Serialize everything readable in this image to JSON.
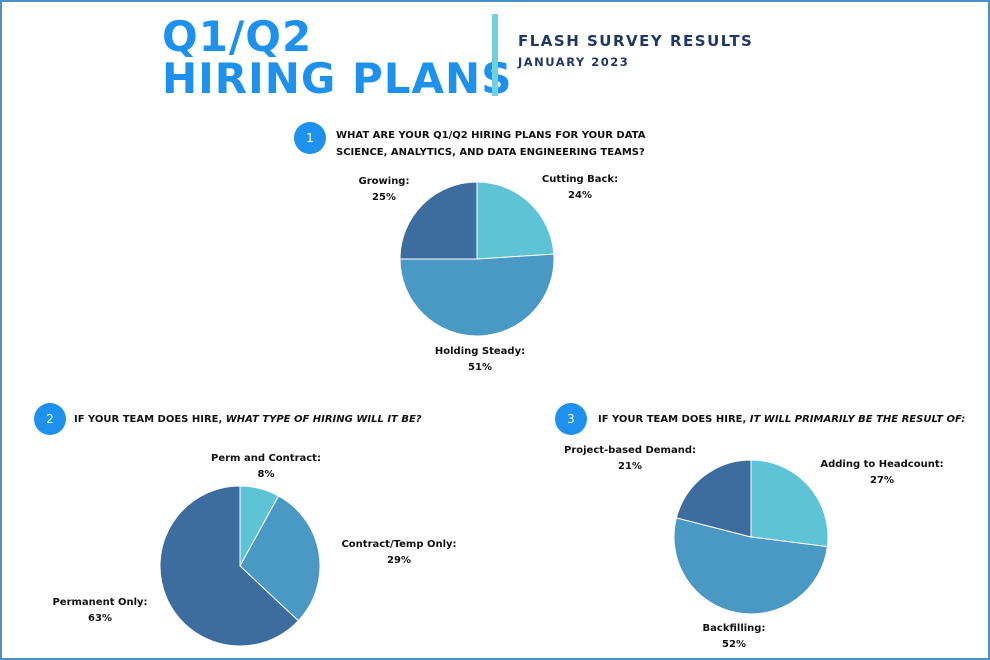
{
  "header": {
    "title_line1": "Q1/Q2",
    "title_line2": "HIRING PLANS",
    "subtitle": "FLASH SURVEY RESULTS",
    "date": "JANUARY 2023"
  },
  "colors": {
    "light": "#5fc3d8",
    "mid": "#4a98c4",
    "dark": "#3d6c9e",
    "accent": "#1e90ee",
    "divider": "#6fd3dc",
    "navy": "#1f3864"
  },
  "questions": [
    {
      "number": "1",
      "line1": "WHAT ARE YOUR Q1/Q2 HIRING PLANS FOR YOUR DATA",
      "line2": "SCIENCE, ANALYTICS, AND DATA ENGINEERING TEAMS?"
    },
    {
      "number": "2",
      "prefix": "IF YOUR TEAM DOES HIRE, ",
      "emphasis": "WHAT TYPE OF HIRING WILL IT BE?"
    },
    {
      "number": "3",
      "prefix": "IF YOUR TEAM DOES HIRE, ",
      "emphasis": "IT WILL PRIMARILY BE THE RESULT OF:"
    }
  ],
  "chart_data": [
    {
      "type": "pie",
      "slices": [
        {
          "label": "Cutting Back:",
          "value": 24,
          "pct": "24%",
          "color": "#5fc3d8"
        },
        {
          "label": "Holding Steady:",
          "value": 51,
          "pct": "51%",
          "color": "#4a98c4"
        },
        {
          "label": "Growing:",
          "value": 25,
          "pct": "25%",
          "color": "#3d6c9e"
        }
      ]
    },
    {
      "type": "pie",
      "slices": [
        {
          "label": "Perm and Contract:",
          "value": 8,
          "pct": "8%",
          "color": "#5fc3d8"
        },
        {
          "label": "Contract/Temp Only:",
          "value": 29,
          "pct": "29%",
          "color": "#4a98c4"
        },
        {
          "label": "Permanent Only:",
          "value": 63,
          "pct": "63%",
          "color": "#3d6c9e"
        }
      ]
    },
    {
      "type": "pie",
      "slices": [
        {
          "label": "Adding to Headcount:",
          "value": 27,
          "pct": "27%",
          "color": "#5fc3d8"
        },
        {
          "label": "Backfilling:",
          "value": 52,
          "pct": "52%",
          "color": "#4a98c4"
        },
        {
          "label": "Project-based Demand:",
          "value": 21,
          "pct": "21%",
          "color": "#3d6c9e"
        }
      ]
    }
  ]
}
